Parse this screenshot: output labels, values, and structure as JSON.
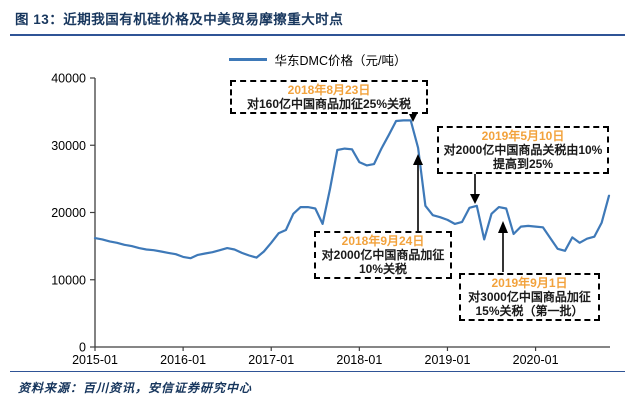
{
  "header": {
    "title": "图 13：近期我国有机硅价格及中美贸易摩擦重大时点"
  },
  "legend": {
    "label": "华东DMC价格（元/吨）"
  },
  "footer": {
    "source": "资料来源：百川资讯，安信证券研究中心"
  },
  "colors": {
    "accent_blue": "#2F5496",
    "title_text": "#17365D",
    "line": "#3E79B8",
    "annotation_date": "#F2A23C",
    "axis": "#3F3F3F"
  },
  "annotations": [
    {
      "date": "2018年8月23日",
      "body": "对160亿中国商品加征25%关税"
    },
    {
      "date": "2019年5月10日",
      "body": "对2000亿中国商品关税由10%提高到25%"
    },
    {
      "date": "2018年9月24日",
      "body": "对2000亿中国商品加征10%关税"
    },
    {
      "date": "2019年9月1日",
      "body": "对3000亿中国商品加征15%关税（第一批）"
    }
  ],
  "chart_data": {
    "type": "line",
    "title": "华东DMC价格（元/吨）",
    "x_start": "2015-01",
    "x_interval": "monthly",
    "x_end": "2020-11",
    "xticks": [
      "2015-01",
      "2016-01",
      "2017-01",
      "2018-01",
      "2019-01",
      "2020-01"
    ],
    "yticks": [
      0,
      10000,
      20000,
      30000,
      40000
    ],
    "ylim": [
      0,
      40000
    ],
    "grid": false,
    "legend_position": "top-center",
    "series": [
      {
        "name": "华东DMC价格",
        "unit": "元/吨",
        "values": [
          16200,
          16000,
          15700,
          15500,
          15200,
          15000,
          14700,
          14500,
          14400,
          14200,
          14000,
          13800,
          13400,
          13200,
          13700,
          13900,
          14100,
          14400,
          14700,
          14500,
          14000,
          13600,
          13300,
          14200,
          15500,
          16900,
          17400,
          19800,
          20800,
          20800,
          20600,
          18300,
          23500,
          29300,
          29500,
          29400,
          27500,
          27000,
          27200,
          29500,
          31500,
          33600,
          33700,
          33700,
          29600,
          21000,
          19600,
          19300,
          18900,
          18300,
          18600,
          20700,
          21000,
          16000,
          19800,
          20800,
          20600,
          16800,
          17900,
          18000,
          17900,
          17800,
          16200,
          14600,
          14300,
          16300,
          15500,
          16100,
          16400,
          18500,
          22500
        ]
      }
    ]
  }
}
